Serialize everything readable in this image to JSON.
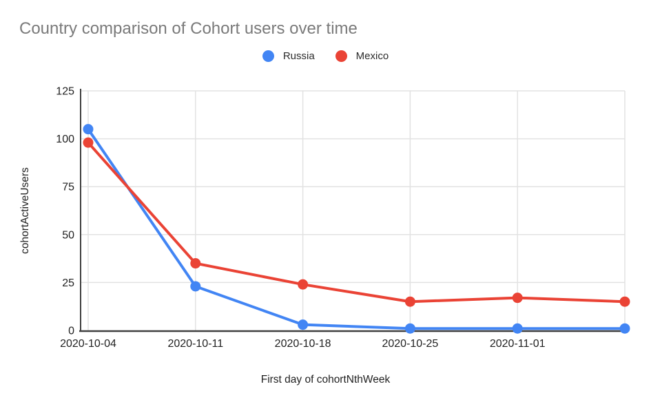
{
  "chart": {
    "title": "Country comparison of Cohort users over time",
    "x_axis_title": "First day of cohortNthWeek",
    "y_axis_title": "cohortActiveUsers"
  },
  "legend": {
    "items": [
      {
        "label": "Russia",
        "color": "#4285f4"
      },
      {
        "label": "Mexico",
        "color": "#ea4335"
      }
    ]
  },
  "chart_data": {
    "type": "line",
    "title": "Country comparison of Cohort users over time",
    "xlabel": "First day of cohortNthWeek",
    "ylabel": "cohortActiveUsers",
    "categories": [
      "2020-10-04",
      "2020-10-11",
      "2020-10-18",
      "2020-10-25",
      "2020-11-01",
      ""
    ],
    "series": [
      {
        "name": "Russia",
        "color": "#4285f4",
        "values": [
          105,
          23,
          3,
          1,
          1,
          1
        ]
      },
      {
        "name": "Mexico",
        "color": "#ea4335",
        "values": [
          98,
          35,
          24,
          15,
          17,
          15
        ]
      }
    ],
    "ylim": [
      0,
      125
    ],
    "yticks": [
      0,
      25,
      50,
      75,
      100,
      125
    ],
    "grid": true,
    "legend_position": "top"
  },
  "colors": {
    "title_text": "#7a7a7a",
    "tick_text": "#1f1f1f",
    "gridline": "#e2e2e2",
    "axis_line": "#3f3f3f",
    "background": "#ffffff"
  }
}
